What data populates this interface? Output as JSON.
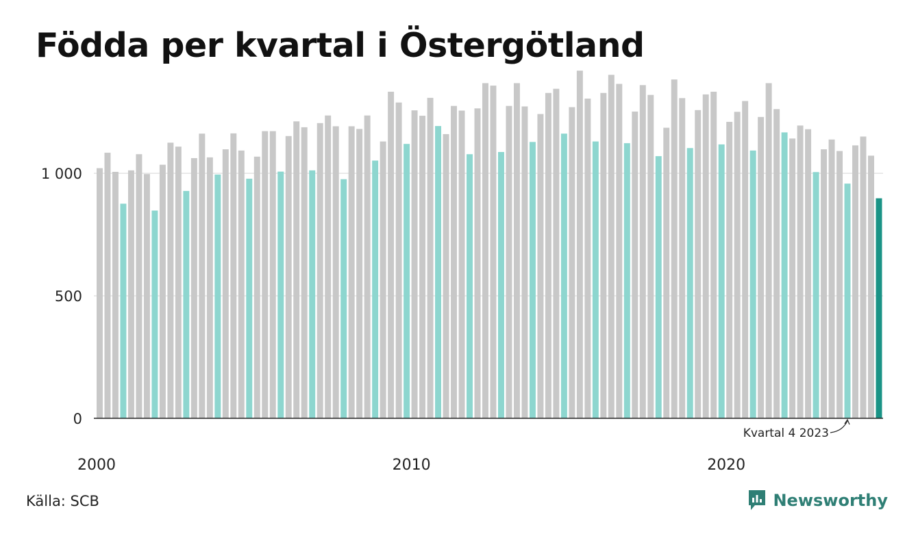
{
  "title": "Födda per kvartal i Östergötland",
  "source": "Källa: SCB",
  "brand": {
    "name": "Newsworthy",
    "icon": "newsworthy-logo-icon",
    "color": "#2f7f75"
  },
  "colors": {
    "other_quarters": "#c8c8c8",
    "q4": "#8dd6cf",
    "latest": "#1a9386"
  },
  "chart_data": {
    "type": "bar",
    "title": "Födda per kvartal i Östergötland",
    "xlabel": "",
    "ylabel": "",
    "ylim": [
      0,
      1400
    ],
    "yticks": [
      {
        "value": 0,
        "label": "0"
      },
      {
        "value": 500,
        "label": "500"
      },
      {
        "value": 1000,
        "label": "1 000"
      }
    ],
    "xticks": [
      {
        "year": 2000,
        "label": "2000"
      },
      {
        "year": 2010,
        "label": "2010"
      },
      {
        "year": 2020,
        "label": "2020"
      }
    ],
    "grid": true,
    "start": "2000 Q1",
    "highlight": "Kvartal 4 bars in teal, latest bar in dark teal",
    "annotation": "Kvartal 4 2023",
    "values": [
      1021,
      1084,
      1006,
      876,
      1012,
      1078,
      997,
      848,
      1035,
      1125,
      1109,
      928,
      1062,
      1162,
      1065,
      995,
      1098,
      1163,
      1093,
      978,
      1068,
      1172,
      1172,
      1007,
      1152,
      1212,
      1188,
      1012,
      1205,
      1236,
      1192,
      976,
      1192,
      1181,
      1236,
      1052,
      1130,
      1333,
      1289,
      1120,
      1257,
      1235,
      1308,
      1193,
      1160,
      1275,
      1256,
      1078,
      1265,
      1368,
      1358,
      1087,
      1275,
      1368,
      1273,
      1128,
      1242,
      1328,
      1345,
      1162,
      1270,
      1419,
      1305,
      1130,
      1328,
      1402,
      1365,
      1123,
      1252,
      1360,
      1320,
      1070,
      1186,
      1383,
      1307,
      1103,
      1258,
      1322,
      1333,
      1118,
      1210,
      1251,
      1295,
      1093,
      1230,
      1368,
      1262,
      1167,
      1142,
      1195,
      1180,
      1005,
      1098,
      1138,
      1091,
      958,
      1114,
      1150,
      1072,
      898
    ]
  }
}
